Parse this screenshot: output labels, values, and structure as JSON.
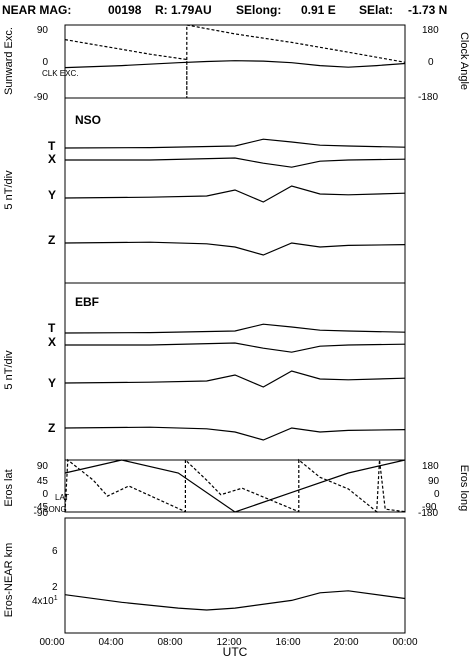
{
  "header": {
    "mission": "NEAR MAG:",
    "day": "00198",
    "r": "R: 1.79AU",
    "selong": "SElong:",
    "selong_val": "0.91 E",
    "selat": "SElat:",
    "selat_val": "-1.73 N"
  },
  "chart_data": [
    {
      "type": "line",
      "id": "p1",
      "ylabel_left": "Sunward Exc.",
      "ylabel_right": "Clock Angle",
      "yticks_left": [
        "90",
        "0",
        "-90"
      ],
      "yticks_right": [
        "180",
        "0",
        "-180"
      ],
      "annotation": "CLK EXC.",
      "ylim": [
        -90,
        90
      ],
      "series": [
        {
          "values": [
            [
              0,
              -15
            ],
            [
              4,
              -10
            ],
            [
              8,
              -3
            ],
            [
              10,
              0
            ],
            [
              12,
              2
            ],
            [
              14,
              1
            ],
            [
              16,
              -3
            ],
            [
              18,
              -10
            ],
            [
              20,
              -14
            ],
            [
              22,
              -10
            ],
            [
              24,
              -5
            ]
          ]
        },
        {
          "values": [
            [
              0,
              54
            ],
            [
              2,
              42
            ],
            [
              4,
              30
            ],
            [
              6,
              18
            ],
            [
              8.6,
              5
            ],
            [
              8.6,
              -90
            ],
            [
              8.6,
              90
            ],
            [
              12,
              68
            ],
            [
              16,
              47
            ],
            [
              20,
              23
            ],
            [
              24,
              -2
            ]
          ]
        }
      ]
    },
    {
      "type": "line",
      "id": "p2",
      "title": "NSO",
      "ylabel": "5 nT/div",
      "component_labels": [
        "T",
        "X",
        "Y",
        "Z"
      ],
      "series": [
        {
          "name": "T",
          "values": [
            [
              0,
              0.3
            ],
            [
              6,
              0.4
            ],
            [
              12,
              0.8
            ],
            [
              14,
              2.5
            ],
            [
              16,
              1.8
            ],
            [
              18,
              1
            ],
            [
              20,
              0.8
            ],
            [
              24,
              0.5
            ]
          ]
        },
        {
          "name": "X",
          "values": [
            [
              0,
              -0.2
            ],
            [
              6,
              -0.2
            ],
            [
              12,
              0.3
            ],
            [
              14,
              -1
            ],
            [
              16,
              -2
            ],
            [
              18,
              -0.5
            ],
            [
              20,
              -0.2
            ],
            [
              24,
              0
            ]
          ]
        },
        {
          "name": "Y",
          "values": [
            [
              0,
              -6
            ],
            [
              6,
              -5.8
            ],
            [
              10,
              -5.5
            ],
            [
              12,
              -4
            ],
            [
              14,
              -7
            ],
            [
              16,
              -3
            ],
            [
              18,
              -5
            ],
            [
              20,
              -5.2
            ],
            [
              24,
              -4.8
            ]
          ]
        },
        {
          "name": "Z",
          "values": [
            [
              0,
              -12
            ],
            [
              6,
              -11.8
            ],
            [
              10,
              -12.2
            ],
            [
              12,
              -13
            ],
            [
              14,
              -15
            ],
            [
              16,
              -12
            ],
            [
              18,
              -13
            ],
            [
              20,
              -12.6
            ],
            [
              24,
              -12.4
            ]
          ]
        }
      ]
    },
    {
      "type": "line",
      "id": "p3",
      "title": "EBF",
      "ylabel": "5 nT/div",
      "component_labels": [
        "T",
        "X",
        "Y",
        "Z"
      ],
      "series": [
        {
          "name": "T",
          "values": [
            [
              0,
              0.3
            ],
            [
              6,
              0.4
            ],
            [
              12,
              0.8
            ],
            [
              14,
              2.5
            ],
            [
              16,
              1.8
            ],
            [
              18,
              1
            ],
            [
              20,
              0.8
            ],
            [
              24,
              0.5
            ]
          ]
        },
        {
          "name": "X",
          "values": [
            [
              0,
              -0.2
            ],
            [
              6,
              -0.2
            ],
            [
              12,
              0.3
            ],
            [
              14,
              -1
            ],
            [
              16,
              -2
            ],
            [
              18,
              -0.5
            ],
            [
              20,
              -0.2
            ],
            [
              24,
              0
            ]
          ]
        },
        {
          "name": "Y",
          "values": [
            [
              0,
              -6
            ],
            [
              6,
              -5.8
            ],
            [
              10,
              -5.5
            ],
            [
              12,
              -4
            ],
            [
              14,
              -7
            ],
            [
              16,
              -3
            ],
            [
              18,
              -5
            ],
            [
              20,
              -5.2
            ],
            [
              24,
              -4.8
            ]
          ]
        },
        {
          "name": "Z",
          "values": [
            [
              0,
              -12
            ],
            [
              6,
              -11.8
            ],
            [
              10,
              -12.2
            ],
            [
              12,
              -13
            ],
            [
              14,
              -15
            ],
            [
              16,
              -12
            ],
            [
              18,
              -13
            ],
            [
              20,
              -12.6
            ],
            [
              24,
              -12.4
            ]
          ]
        }
      ]
    },
    {
      "type": "line",
      "id": "p4",
      "ylabel_left": "Eros lat",
      "ylabel_right": "Eros long",
      "yticks_left": [
        "90",
        "45",
        "0",
        "-45",
        "-90"
      ],
      "yticks_right": [
        "180",
        "90",
        "0",
        "-90",
        "-180"
      ],
      "labels": [
        "LAT",
        "LONG"
      ],
      "ylim": [
        -90,
        90
      ],
      "series": [
        {
          "name": "LAT",
          "values": [
            [
              0,
              45
            ],
            [
              4,
              90
            ],
            [
              8,
              45
            ],
            [
              12,
              -90
            ],
            [
              16,
              -22
            ],
            [
              20,
              45
            ],
            [
              24,
              90
            ]
          ]
        },
        {
          "name": "LONG",
          "values": [
            [
              0,
              -178
            ],
            [
              0.2,
              180
            ],
            [
              2,
              40
            ],
            [
              3,
              -70
            ],
            [
              4.5,
              0
            ],
            [
              8.5,
              -178
            ],
            [
              8.5,
              180
            ],
            [
              10,
              40
            ],
            [
              11,
              -60
            ],
            [
              12.5,
              -15
            ],
            [
              16.5,
              -178
            ],
            [
              16.5,
              180
            ],
            [
              18,
              60
            ],
            [
              20,
              -20
            ],
            [
              22,
              -178
            ],
            [
              22.2,
              180
            ],
            [
              22.6,
              -160
            ],
            [
              24,
              -178
            ]
          ]
        }
      ]
    },
    {
      "type": "line",
      "id": "p5",
      "ylabel": "Eros-NEAR km",
      "yscale": "log",
      "yticks": [
        "6",
        "2",
        "4x10"
      ],
      "ytick_exponent": "1",
      "series": [
        {
          "name": "range",
          "values": [
            [
              0,
              40
            ],
            [
              4,
              38
            ],
            [
              8,
              36.5
            ],
            [
              10,
              36
            ],
            [
              12,
              36.5
            ],
            [
              16,
              38.5
            ],
            [
              18,
              40.5
            ],
            [
              20,
              41
            ],
            [
              24,
              39
            ]
          ]
        }
      ]
    }
  ],
  "x_axis": {
    "label": "UTC",
    "range": [
      0,
      24
    ],
    "ticks": [
      "00:00",
      "04:00",
      "08:00",
      "12:00",
      "16:00",
      "20:00",
      "00:00"
    ]
  }
}
